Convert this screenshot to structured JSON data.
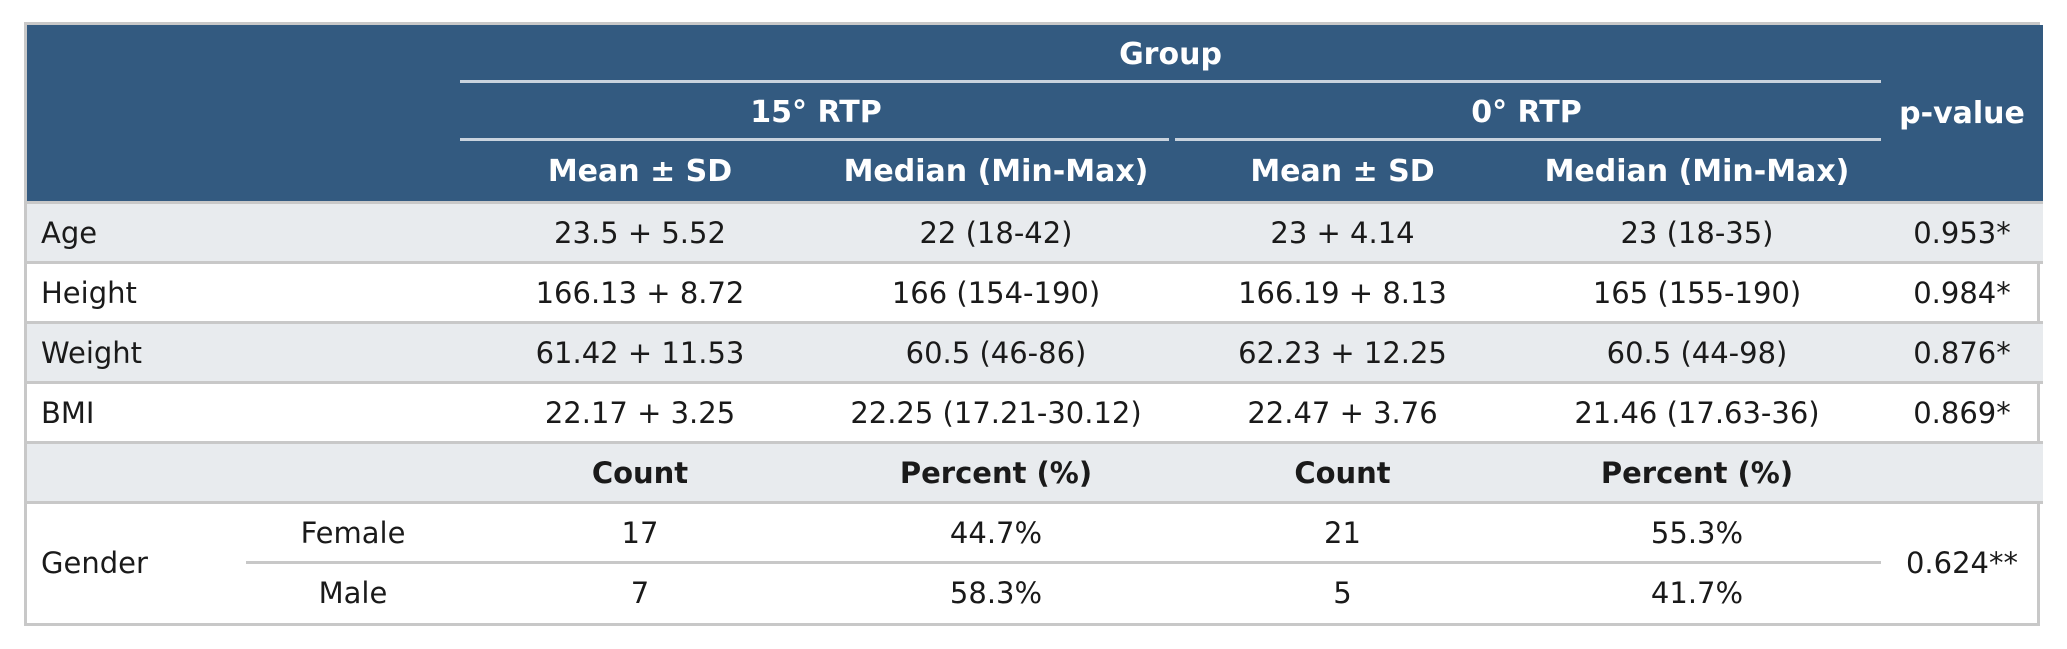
{
  "header": {
    "group": "Group",
    "arm_15": "15° RTP",
    "arm_0": "0° RTP",
    "p_value": "p-value",
    "mean_sd": "Mean ± SD",
    "median_range": "Median (Min-Max)"
  },
  "continuous_rows": [
    {
      "label": "Age",
      "a_mean": "23.5 + 5.52",
      "a_median": "22 (18-42)",
      "b_mean": "23 + 4.14",
      "b_median": "23 (18-35)",
      "p": "0.953*"
    },
    {
      "label": "Height",
      "a_mean": "166.13 + 8.72",
      "a_median": "166 (154-190)",
      "b_mean": "166.19 + 8.13",
      "b_median": "165 (155-190)",
      "p": "0.984*"
    },
    {
      "label": "Weight",
      "a_mean": "61.42 + 11.53",
      "a_median": "60.5 (46-86)",
      "b_mean": "62.23 + 12.25",
      "b_median": "60.5 (44-98)",
      "p": "0.876*"
    },
    {
      "label": "BMI",
      "a_mean": "22.17 + 3.25",
      "a_median": "22.25 (17.21-30.12)",
      "b_mean": "22.47 + 3.76",
      "b_median": "21.46 (17.63-36)",
      "p": "0.869*"
    }
  ],
  "categorical_header": {
    "count": "Count",
    "percent": "Percent (%)"
  },
  "gender": {
    "label": "Gender",
    "p": "0.624**",
    "rows": [
      {
        "label": "Female",
        "a_count": "17",
        "a_pct": "44.7%",
        "b_count": "21",
        "b_pct": "55.3%"
      },
      {
        "label": "Male",
        "a_count": "7",
        "a_pct": "58.3%",
        "b_count": "5",
        "b_pct": "41.7%"
      }
    ]
  }
}
